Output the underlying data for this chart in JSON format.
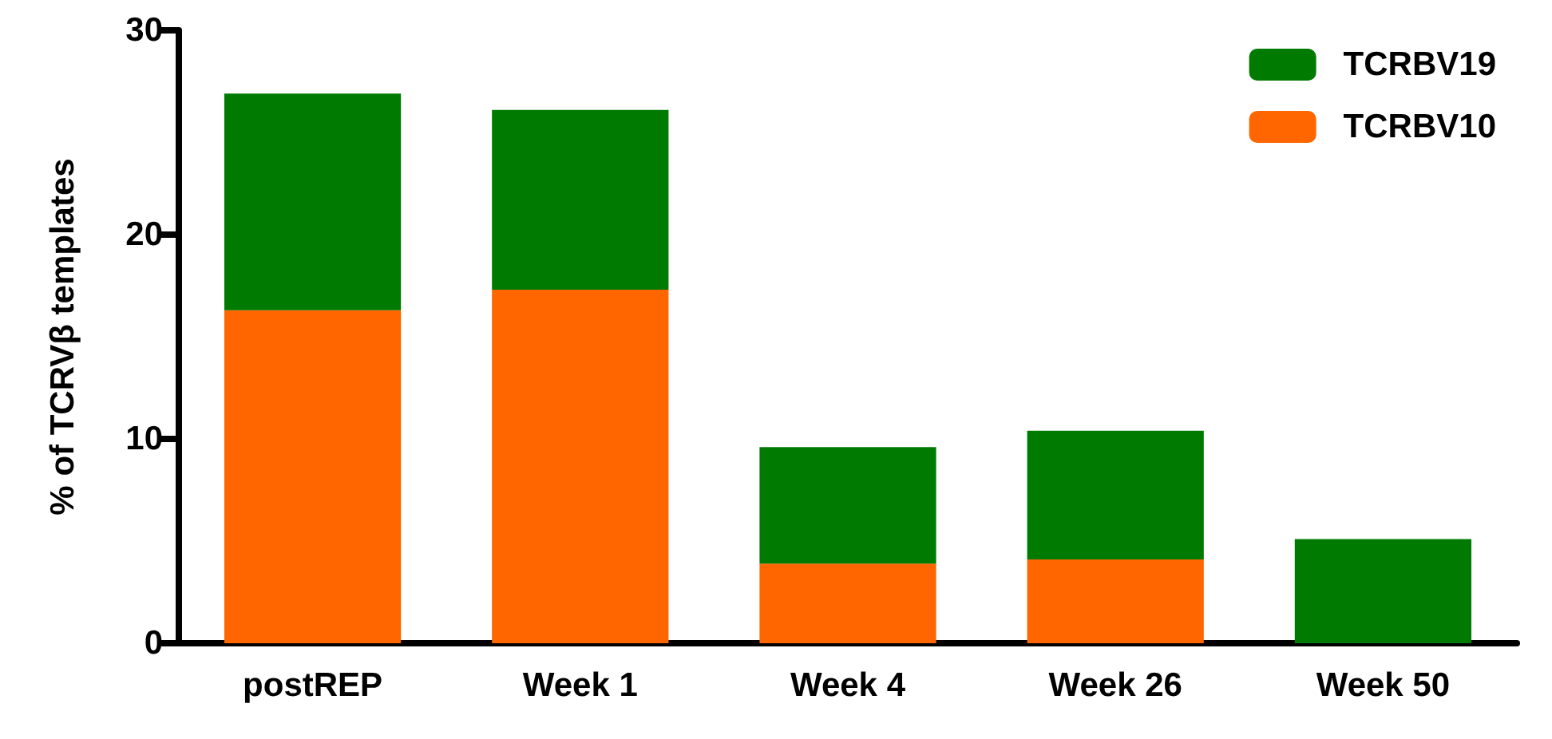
{
  "chart_data": {
    "type": "bar",
    "ylabel": "% of TCRVβ templates",
    "categories": [
      "postREP",
      "Week 1",
      "Week 4",
      "Week 26",
      "Week 50"
    ],
    "series": [
      {
        "name": "TCRBV10",
        "color": "#ff6600",
        "values": [
          16.3,
          17.3,
          3.9,
          4.1,
          0
        ]
      },
      {
        "name": "TCRBV19",
        "color": "#007a00",
        "values": [
          10.6,
          8.8,
          5.7,
          6.3,
          5.1
        ]
      }
    ],
    "stacked": true,
    "ylim": [
      0,
      30
    ],
    "yticks": [
      0,
      10,
      20,
      30
    ],
    "grid": false,
    "legend": "top right"
  }
}
